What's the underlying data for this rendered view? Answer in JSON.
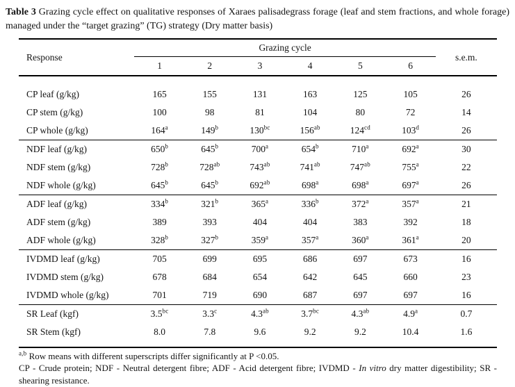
{
  "title": {
    "bold": "Table 3",
    "rest": " Grazing cycle effect on qualitative responses of Xaraes palisadegrass forage (leaf and stem fractions, and whole forage) managed under the “target grazing” (TG) strategy (Dry matter basis)"
  },
  "table": {
    "col_response": "Response",
    "col_group": "Grazing cycle",
    "col_cycles": [
      "1",
      "2",
      "3",
      "4",
      "5",
      "6"
    ],
    "col_sem": "s.e.m.",
    "sections": [
      {
        "name": "cp",
        "rows": [
          {
            "label": "CP leaf (g/kg)",
            "cells": [
              {
                "v": "165",
                "sup": ""
              },
              {
                "v": "155",
                "sup": ""
              },
              {
                "v": "131",
                "sup": ""
              },
              {
                "v": "163",
                "sup": ""
              },
              {
                "v": "125",
                "sup": ""
              },
              {
                "v": "105",
                "sup": ""
              }
            ],
            "sem": "26"
          },
          {
            "label": "CP stem (g/kg)",
            "cells": [
              {
                "v": "100",
                "sup": ""
              },
              {
                "v": "98",
                "sup": ""
              },
              {
                "v": "81",
                "sup": ""
              },
              {
                "v": "104",
                "sup": ""
              },
              {
                "v": "80",
                "sup": ""
              },
              {
                "v": "72",
                "sup": ""
              }
            ],
            "sem": "14"
          },
          {
            "label": "CP whole (g/kg)",
            "cells": [
              {
                "v": "164",
                "sup": "a"
              },
              {
                "v": "149",
                "sup": "b"
              },
              {
                "v": "130",
                "sup": "bc"
              },
              {
                "v": "156",
                "sup": "ab"
              },
              {
                "v": "124",
                "sup": "cd"
              },
              {
                "v": "103",
                "sup": "d"
              }
            ],
            "sem": "26"
          }
        ]
      },
      {
        "name": "ndf",
        "rows": [
          {
            "label": "NDF leaf (g/kg)",
            "cells": [
              {
                "v": "650",
                "sup": "b"
              },
              {
                "v": "645",
                "sup": "b"
              },
              {
                "v": "700",
                "sup": "a"
              },
              {
                "v": "654",
                "sup": "b"
              },
              {
                "v": "710",
                "sup": "a"
              },
              {
                "v": "692",
                "sup": "a"
              }
            ],
            "sem": "30"
          },
          {
            "label": "NDF stem (g/kg)",
            "cells": [
              {
                "v": "728",
                "sup": "b"
              },
              {
                "v": "728",
                "sup": "ab"
              },
              {
                "v": "743",
                "sup": "ab"
              },
              {
                "v": "741",
                "sup": "ab"
              },
              {
                "v": "747",
                "sup": "ab"
              },
              {
                "v": "755",
                "sup": "a"
              }
            ],
            "sem": "22"
          },
          {
            "label": "NDF whole (g/kg)",
            "cells": [
              {
                "v": "645",
                "sup": "b"
              },
              {
                "v": "645",
                "sup": "b"
              },
              {
                "v": "692",
                "sup": "ab"
              },
              {
                "v": "698",
                "sup": "a"
              },
              {
                "v": "698",
                "sup": "a"
              },
              {
                "v": "697",
                "sup": "a"
              }
            ],
            "sem": "26"
          }
        ]
      },
      {
        "name": "adf",
        "rows": [
          {
            "label": "ADF leaf (g/kg)",
            "cells": [
              {
                "v": "334",
                "sup": "b"
              },
              {
                "v": "321",
                "sup": "b"
              },
              {
                "v": "365",
                "sup": "a"
              },
              {
                "v": "336",
                "sup": "b"
              },
              {
                "v": "372",
                "sup": "a"
              },
              {
                "v": "357",
                "sup": "a"
              }
            ],
            "sem": "21"
          },
          {
            "label": "ADF stem (g/kg)",
            "cells": [
              {
                "v": "389",
                "sup": ""
              },
              {
                "v": "393",
                "sup": ""
              },
              {
                "v": "404",
                "sup": ""
              },
              {
                "v": "404",
                "sup": ""
              },
              {
                "v": "383",
                "sup": ""
              },
              {
                "v": "392",
                "sup": ""
              }
            ],
            "sem": "18"
          },
          {
            "label": "ADF whole (g/kg)",
            "cells": [
              {
                "v": "328",
                "sup": "b"
              },
              {
                "v": "327",
                "sup": "b"
              },
              {
                "v": "359",
                "sup": "a"
              },
              {
                "v": "357",
                "sup": "a"
              },
              {
                "v": "360",
                "sup": "a"
              },
              {
                "v": "361",
                "sup": "a"
              }
            ],
            "sem": "20"
          }
        ]
      },
      {
        "name": "ivdmd",
        "rows": [
          {
            "label": "IVDMD leaf (g/kg)",
            "cells": [
              {
                "v": "705",
                "sup": ""
              },
              {
                "v": "699",
                "sup": ""
              },
              {
                "v": "695",
                "sup": ""
              },
              {
                "v": "686",
                "sup": ""
              },
              {
                "v": "697",
                "sup": ""
              },
              {
                "v": "673",
                "sup": ""
              }
            ],
            "sem": "16"
          },
          {
            "label": "IVDMD stem (g/kg)",
            "cells": [
              {
                "v": "678",
                "sup": ""
              },
              {
                "v": "684",
                "sup": ""
              },
              {
                "v": "654",
                "sup": ""
              },
              {
                "v": "642",
                "sup": ""
              },
              {
                "v": "645",
                "sup": ""
              },
              {
                "v": "660",
                "sup": ""
              }
            ],
            "sem": "23"
          },
          {
            "label": "IVDMD whole (g/kg)",
            "cells": [
              {
                "v": "701",
                "sup": ""
              },
              {
                "v": "719",
                "sup": ""
              },
              {
                "v": "690",
                "sup": ""
              },
              {
                "v": "687",
                "sup": ""
              },
              {
                "v": "697",
                "sup": ""
              },
              {
                "v": "697",
                "sup": ""
              }
            ],
            "sem": "16"
          }
        ]
      },
      {
        "name": "sr",
        "rows": [
          {
            "label": "SR Leaf (kgf)",
            "cells": [
              {
                "v": "3.5",
                "sup": "bc"
              },
              {
                "v": "3.3",
                "sup": "c"
              },
              {
                "v": "4.3",
                "sup": "ab"
              },
              {
                "v": "3.7",
                "sup": "bc"
              },
              {
                "v": "4.3",
                "sup": "ab"
              },
              {
                "v": "4.9",
                "sup": "a"
              }
            ],
            "sem": "0.7"
          },
          {
            "label": "SR Stem (kgf)",
            "cells": [
              {
                "v": "8.0",
                "sup": ""
              },
              {
                "v": "7.8",
                "sup": ""
              },
              {
                "v": "9.6",
                "sup": ""
              },
              {
                "v": "9.2",
                "sup": ""
              },
              {
                "v": "9.2",
                "sup": ""
              },
              {
                "v": "10.4",
                "sup": ""
              }
            ],
            "sem": "1.6"
          }
        ]
      }
    ]
  },
  "footnotes": {
    "sig_sup": "a,b",
    "sig_text": " Row means with different superscripts differ significantly at P <0.05.",
    "abbrev_pre": "CP - Crude protein; NDF - Neutral detergent fibre; ADF - Acid detergent fibre; IVDMD - ",
    "abbrev_italic": "In vitro",
    "abbrev_post": " dry matter digestibility; SR - shearing resistance."
  }
}
